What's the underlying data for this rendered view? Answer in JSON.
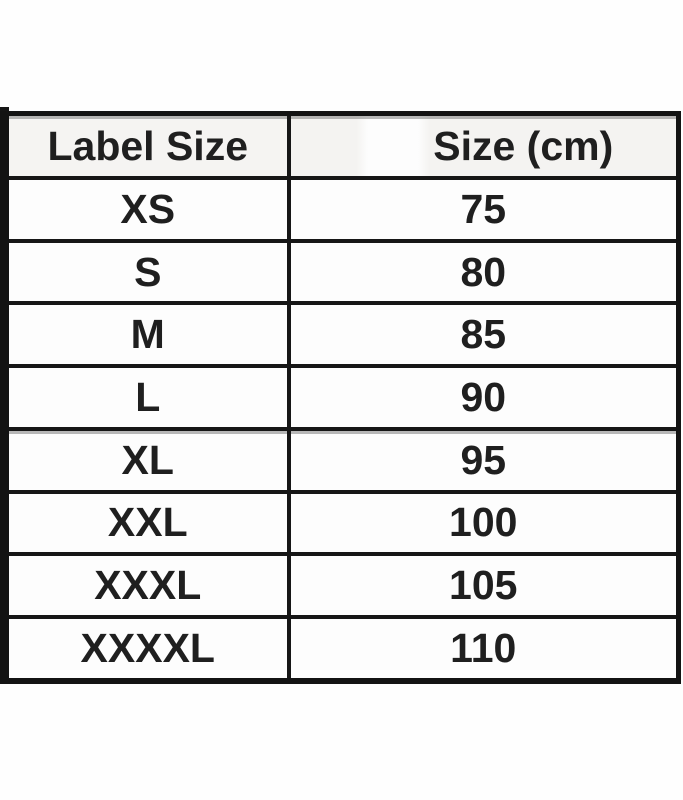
{
  "table": {
    "columns": [
      "Label Size",
      "Size (cm)"
    ],
    "rows": [
      [
        "XS",
        "75"
      ],
      [
        "S",
        "80"
      ],
      [
        "M",
        "85"
      ],
      [
        "L",
        "90"
      ],
      [
        "XL",
        "95"
      ],
      [
        "XXL",
        "100"
      ],
      [
        "XXXL",
        "105"
      ],
      [
        "XXXXL",
        "110"
      ]
    ]
  },
  "colors": {
    "border": "#131313",
    "text": "#1f1f1f",
    "header_background": "#f5f4f2",
    "page_background": "#fefefe"
  },
  "chart_data": {
    "type": "table",
    "columns": [
      "Label Size",
      "Size (cm)"
    ],
    "rows": [
      [
        "XS",
        75
      ],
      [
        "S",
        80
      ],
      [
        "M",
        85
      ],
      [
        "L",
        90
      ],
      [
        "XL",
        95
      ],
      [
        "XXL",
        100
      ],
      [
        "XXXL",
        105
      ],
      [
        "XXXXL",
        110
      ]
    ]
  }
}
